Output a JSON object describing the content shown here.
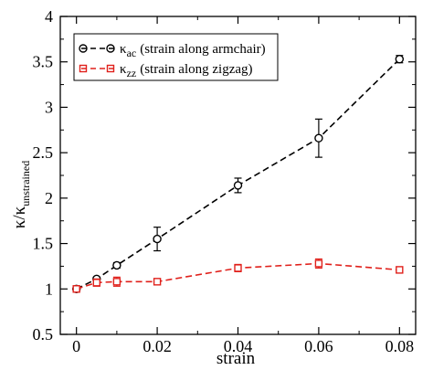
{
  "chart_data": {
    "type": "line",
    "xlabel": "strain",
    "ylabel": {
      "main": "κ/κ",
      "subscript": "unstrained"
    },
    "xlim": [
      -0.004,
      0.084
    ],
    "ylim": [
      0.5,
      4.0
    ],
    "xticks": [
      0,
      0.02,
      0.04,
      0.06,
      0.08
    ],
    "xtick_labels": [
      "0",
      "0.02",
      "0.04",
      "0.06",
      "0.08"
    ],
    "yticks": [
      0.5,
      1,
      1.5,
      2,
      2.5,
      3,
      3.5,
      4
    ],
    "ytick_labels": [
      "0.5",
      "1",
      "1.5",
      "2",
      "2.5",
      "3",
      "3.5",
      "4"
    ],
    "grid": false,
    "legend_placement": "top-left",
    "series": [
      {
        "name": "κac (strain along armchair)",
        "label_symbol": "κ",
        "label_subscript": "ac",
        "label_text": "(strain along armchair)",
        "color": "#000000",
        "marker": "circle",
        "line_style": "dashed",
        "x": [
          0,
          0.005,
          0.01,
          0.02,
          0.04,
          0.06,
          0.08
        ],
        "y": [
          1.0,
          1.11,
          1.26,
          1.55,
          2.14,
          2.66,
          3.53
        ],
        "err": [
          0.02,
          0.02,
          0.03,
          0.13,
          0.08,
          0.21,
          0.04
        ]
      },
      {
        "name": "κzz (strain along zigzag)",
        "label_symbol": "κ",
        "label_subscript": "zz",
        "label_text": "(strain along zigzag)",
        "color": "#e0201b",
        "marker": "square",
        "line_style": "dashed",
        "x": [
          0,
          0.005,
          0.01,
          0.02,
          0.04,
          0.06,
          0.08
        ],
        "y": [
          1.0,
          1.07,
          1.08,
          1.08,
          1.23,
          1.28,
          1.21
        ],
        "err": [
          0.02,
          0.04,
          0.05,
          0.03,
          0.04,
          0.05,
          0.03
        ]
      }
    ]
  }
}
